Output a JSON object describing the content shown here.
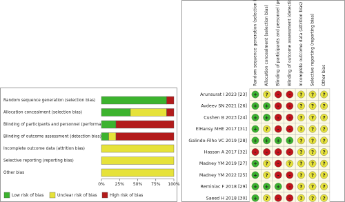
{
  "chart_data": {
    "type": "bar",
    "orientation": "horizontal",
    "stacked": true,
    "categories": [
      "Random sequence generation (selection bias)",
      "Allocation concealment (selection bias)",
      "Blinding of participants and personnel (performance bias)",
      "Blinding of outcome assessment (detection bias)",
      "Incomplete outcome data (attrition bias)",
      "Selective reporting (reporting bias)",
      "Other bias"
    ],
    "series": [
      {
        "name": "Low risk of bias",
        "color": "#3cb32e",
        "values": [
          90,
          40,
          20,
          10,
          0,
          0,
          0
        ]
      },
      {
        "name": "Unclear risk of bias",
        "color": "#e6e23a",
        "values": [
          0,
          50,
          0,
          10,
          100,
          100,
          100
        ]
      },
      {
        "name": "High risk of bias",
        "color": "#b31b1b",
        "values": [
          10,
          10,
          80,
          80,
          0,
          0,
          0
        ]
      }
    ],
    "xlim": [
      0,
      100
    ],
    "xticks": [
      {
        "value": 0,
        "label": "0%"
      },
      {
        "value": 25,
        "label": "25%"
      },
      {
        "value": 50,
        "label": "50%"
      },
      {
        "value": 75,
        "label": "75%"
      },
      {
        "value": 100,
        "label": "100%"
      }
    ],
    "legend": "bottom"
  },
  "table": {
    "columns": [
      "Random sequence generation (selection bias)",
      "Allocation concealment (selection bias)",
      "Blinding of participants and personnel (performance bias)",
      "Blinding of outcome assessment (detection bias)",
      "Incomplete outcome data (attrition bias)",
      "Selective reporting (reporting bias)",
      "Other bias"
    ],
    "judgement_colors": {
      "+": "#3cb32e",
      "?": "#e6e23a",
      "-": "#c0141a"
    },
    "rows": [
      {
        "study": "Arunsurat I 2023 [23]",
        "judgements": [
          "+",
          "?",
          "-",
          "-",
          "?",
          "?",
          "?"
        ]
      },
      {
        "study": "Avdeev SN 2021 [26]",
        "judgements": [
          "+",
          "+",
          "-",
          "-",
          "?",
          "?",
          "?"
        ]
      },
      {
        "study": "Cushen B 2023  [24]",
        "judgements": [
          "+",
          "+",
          "-",
          "-",
          "?",
          "?",
          "?"
        ]
      },
      {
        "study": "ElHansy MHE 2017 [31]",
        "judgements": [
          "+",
          "?",
          "-",
          "-",
          "?",
          "?",
          "?"
        ]
      },
      {
        "study": "Galindo-Filho VC 2019 [28]",
        "judgements": [
          "+",
          "+",
          "+",
          "+",
          "?",
          "?",
          "?"
        ]
      },
      {
        "study": "Hassan A 2017 [32]",
        "judgements": [
          "-",
          "-",
          "-",
          "-",
          "?",
          "?",
          "?"
        ]
      },
      {
        "study": "Madney YM 2019 [27]",
        "judgements": [
          "+",
          "?",
          "-",
          "?",
          "?",
          "?",
          "?"
        ]
      },
      {
        "study": "Madney YM 2022 [25]",
        "judgements": [
          "+",
          "?",
          "-",
          "-",
          "?",
          "?",
          "?"
        ]
      },
      {
        "study": "Reminiac F 2018 [29]",
        "judgements": [
          "+",
          "+",
          "+",
          "-",
          "?",
          "?",
          "?"
        ]
      },
      {
        "study": "Saeed H  2018 [30]",
        "judgements": [
          "+",
          "?",
          "-",
          "-",
          "?",
          "?",
          "?"
        ]
      }
    ]
  }
}
